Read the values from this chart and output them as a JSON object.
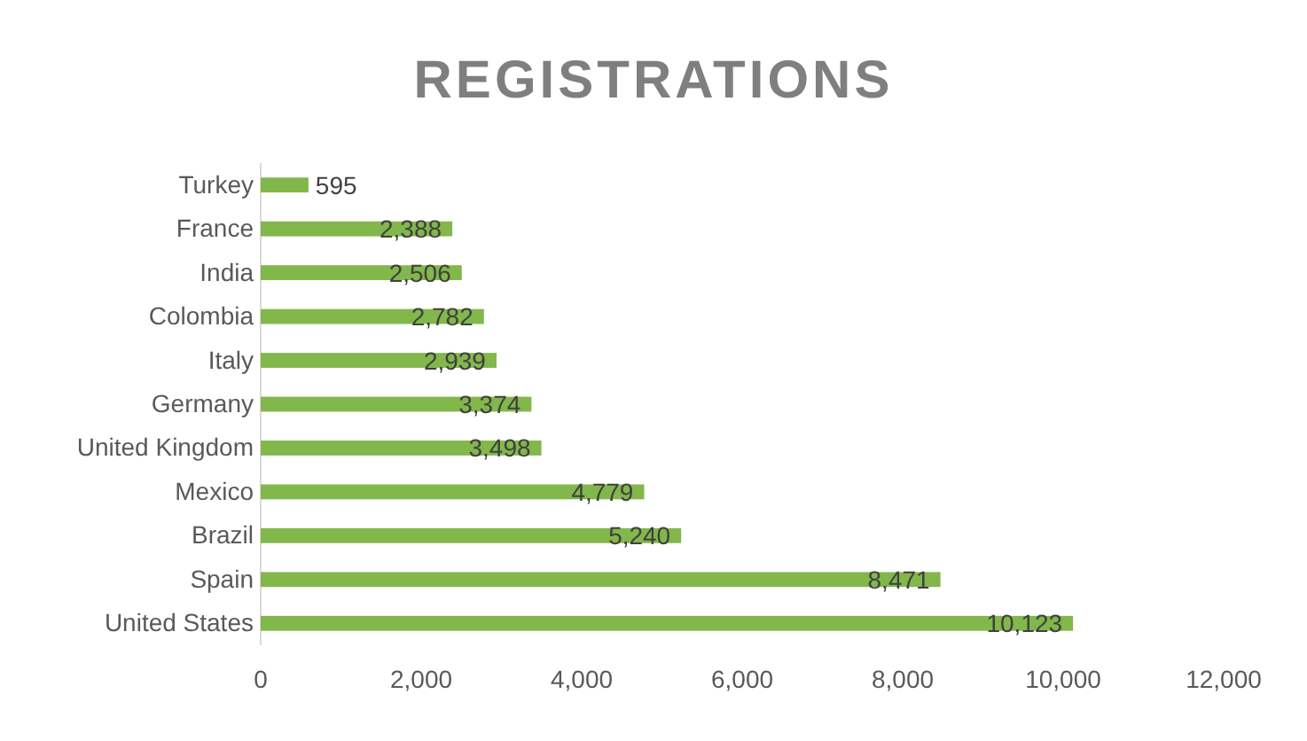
{
  "chart_data": {
    "type": "bar",
    "orientation": "horizontal",
    "title": "REGISTRATIONS",
    "categories": [
      "Turkey",
      "France",
      "India",
      "Colombia",
      "Italy",
      "Germany",
      "United Kingdom",
      "Mexico",
      "Brazil",
      "Spain",
      "United States"
    ],
    "values": [
      595,
      2388,
      2506,
      2782,
      2939,
      3374,
      3498,
      4779,
      5240,
      8471,
      10123
    ],
    "value_labels": [
      "595",
      "2,388",
      "2,506",
      "2,782",
      "2,939",
      "3,374",
      "3,498",
      "4,779",
      "5,240",
      "8,471",
      "10,123"
    ],
    "color": "#82b74b",
    "xlim": [
      0,
      12000
    ],
    "xticks": [
      0,
      {
        "value": 2000,
        "label": "2,000"
      },
      {
        "value": 4000,
        "label": "4,000"
      },
      {
        "value": 6000,
        "label": "6,000"
      },
      {
        "value": 8000,
        "label": "8,000"
      },
      {
        "value": 10000,
        "label": "10,000"
      },
      {
        "value": 12000,
        "label": "12,000"
      }
    ],
    "grid": false
  }
}
